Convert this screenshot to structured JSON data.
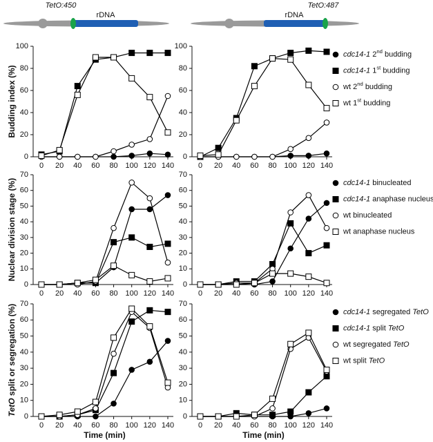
{
  "figure": {
    "diagrams": [
      {
        "label": "TetO:450",
        "region": "rDNA"
      },
      {
        "label": "TetO:487",
        "region": "rDNA"
      }
    ]
  },
  "chart_data": [
    {
      "type": "line",
      "y_label": "Budding index (%)",
      "x": [
        0,
        20,
        40,
        60,
        80,
        100,
        120,
        140
      ],
      "xticks": [
        0,
        20,
        40,
        60,
        80,
        100,
        120,
        140
      ],
      "ylim": [
        0,
        100
      ],
      "yticks": [
        0,
        20,
        40,
        60,
        80,
        100
      ],
      "series": [
        {
          "marker": "circle",
          "color": "#000000",
          "values": [
            0,
            0,
            0,
            0,
            0,
            1,
            3,
            2
          ]
        },
        {
          "marker": "square",
          "color": "#000000",
          "values": [
            2,
            5,
            64,
            88,
            90,
            94,
            94,
            94
          ]
        },
        {
          "marker": "circle",
          "color": "#ffffff",
          "values": [
            0,
            0,
            0,
            0,
            5,
            11,
            16,
            55
          ]
        },
        {
          "marker": "square",
          "color": "#ffffff",
          "values": [
            1,
            6,
            56,
            90,
            90,
            71,
            54,
            22
          ]
        }
      ]
    },
    {
      "type": "line",
      "x": [
        0,
        20,
        40,
        60,
        80,
        100,
        120,
        140
      ],
      "xticks": [
        0,
        20,
        40,
        60,
        80,
        100,
        120,
        140
      ],
      "ylim": [
        0,
        100
      ],
      "yticks": [
        0,
        20,
        40,
        60,
        80,
        100
      ],
      "series": [
        {
          "name": "cdc14-1 2nd budding",
          "marker": "circle",
          "color": "#000000",
          "values": [
            0,
            0,
            0,
            0,
            0,
            1,
            1,
            3
          ]
        },
        {
          "name": "cdc14-1 1st budding",
          "marker": "square",
          "color": "#000000",
          "values": [
            0,
            8,
            35,
            82,
            89,
            94,
            96,
            95
          ]
        },
        {
          "name": "wt 2nd budding",
          "marker": "circle",
          "color": "#ffffff",
          "values": [
            0,
            0,
            0,
            0,
            0,
            7,
            17,
            31
          ]
        },
        {
          "name": "wt 1st budding",
          "marker": "square",
          "color": "#ffffff",
          "values": [
            1,
            2,
            33,
            64,
            89,
            88,
            65,
            44
          ]
        }
      ]
    },
    {
      "type": "line",
      "y_label": "Nuclear division stage (%)",
      "x": [
        0,
        20,
        40,
        60,
        80,
        100,
        120,
        140
      ],
      "xticks": [
        0,
        20,
        40,
        60,
        80,
        100,
        120,
        140
      ],
      "ylim": [
        0,
        70
      ],
      "yticks": [
        0,
        10,
        20,
        30,
        40,
        50,
        60,
        70
      ],
      "series": [
        {
          "marker": "circle",
          "color": "#000000",
          "values": [
            0,
            0,
            1,
            1,
            11,
            48,
            48,
            57
          ]
        },
        {
          "marker": "square",
          "color": "#000000",
          "values": [
            0,
            0,
            1,
            1,
            27,
            30,
            24,
            26
          ]
        },
        {
          "marker": "circle",
          "color": "#ffffff",
          "values": [
            0,
            0,
            0,
            2,
            36,
            65,
            55,
            14
          ]
        },
        {
          "marker": "square",
          "color": "#ffffff",
          "values": [
            0,
            0,
            1,
            3,
            12,
            6,
            2,
            4
          ]
        }
      ]
    },
    {
      "type": "line",
      "x": [
        0,
        20,
        40,
        60,
        80,
        100,
        120,
        140
      ],
      "xticks": [
        0,
        20,
        40,
        60,
        80,
        100,
        120,
        140
      ],
      "ylim": [
        0,
        70
      ],
      "yticks": [
        0,
        10,
        20,
        30,
        40,
        50,
        60,
        70
      ],
      "series": [
        {
          "name": "cdc14-1 binucleated",
          "marker": "circle",
          "color": "#000000",
          "values": [
            0,
            0,
            0,
            0,
            2,
            23,
            42,
            52
          ]
        },
        {
          "name": "cdc14-1 anaphase nucleus",
          "marker": "square",
          "color": "#000000",
          "values": [
            0,
            0,
            2,
            2,
            13,
            39,
            20,
            25
          ]
        },
        {
          "name": "wt binucleated",
          "marker": "circle",
          "color": "#ffffff",
          "values": [
            0,
            0,
            1,
            1,
            10,
            46,
            57,
            36
          ]
        },
        {
          "name": "wt anaphase nucleus",
          "marker": "square",
          "color": "#ffffff",
          "values": [
            0,
            0,
            0,
            1,
            7,
            7,
            5,
            1
          ]
        }
      ]
    },
    {
      "type": "line",
      "y_label": "TetO split or segregation (%)",
      "x_label": "Time (min)",
      "x": [
        0,
        20,
        40,
        60,
        80,
        100,
        120,
        140
      ],
      "xticks": [
        0,
        20,
        40,
        60,
        80,
        100,
        120,
        140
      ],
      "ylim": [
        0,
        70
      ],
      "yticks": [
        0,
        10,
        20,
        30,
        40,
        50,
        60,
        70
      ],
      "series": [
        {
          "marker": "circle",
          "color": "#000000",
          "values": [
            0,
            0,
            0,
            0,
            8,
            29,
            34,
            47
          ]
        },
        {
          "marker": "square",
          "color": "#000000",
          "values": [
            0,
            0,
            1,
            4,
            27,
            59,
            66,
            65
          ]
        },
        {
          "marker": "circle",
          "color": "#ffffff",
          "values": [
            0,
            0,
            1,
            5,
            39,
            65,
            55,
            18
          ]
        },
        {
          "marker": "square",
          "color": "#ffffff",
          "values": [
            0,
            1,
            3,
            9,
            49,
            67,
            56,
            21
          ]
        }
      ]
    },
    {
      "type": "line",
      "x_label": "Time (min)",
      "x": [
        0,
        20,
        40,
        60,
        80,
        100,
        120,
        140
      ],
      "xticks": [
        0,
        20,
        40,
        60,
        80,
        100,
        120,
        140
      ],
      "ylim": [
        0,
        70
      ],
      "yticks": [
        0,
        10,
        20,
        30,
        40,
        50,
        60,
        70
      ],
      "series": [
        {
          "name": "cdc14-1 segregated TetO",
          "marker": "circle",
          "color": "#000000",
          "values": [
            0,
            0,
            0,
            0,
            0,
            0,
            2,
            5
          ]
        },
        {
          "name": "cdc14-1 split TetO",
          "marker": "square",
          "color": "#000000",
          "values": [
            0,
            0,
            2,
            1,
            1,
            3,
            15,
            25
          ]
        },
        {
          "name": "wt segregated TetO",
          "marker": "circle",
          "color": "#ffffff",
          "values": [
            0,
            0,
            0,
            0,
            5,
            42,
            49,
            28
          ]
        },
        {
          "name": "wt split TetO",
          "marker": "square",
          "color": "#ffffff",
          "values": [
            0,
            0,
            0,
            1,
            11,
            45,
            52,
            29
          ]
        }
      ]
    }
  ]
}
